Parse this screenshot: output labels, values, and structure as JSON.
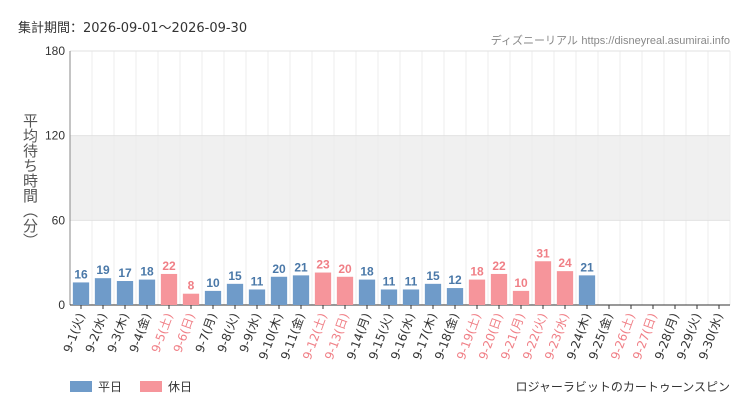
{
  "header": {
    "period": "集計期間：2026-09-01～2026-09-30",
    "source_name": "ディズニーリアル",
    "source_url": "https://disneyreal.asumirai.info"
  },
  "colors": {
    "weekday": "#6f9bc9",
    "holiday": "#f6959b",
    "weekday_label": "#4a78a8",
    "holiday_label": "#f07f86",
    "band": "#f0f0f0",
    "grid": "#e2e2e2"
  },
  "legend": {
    "weekday_label": "平日",
    "holiday_label": "休日"
  },
  "attraction": "ロジャーラビットのカートゥーンスピン",
  "chart_data": {
    "type": "bar",
    "ylabel": "平均待ち時間（分）",
    "ylim": [
      0,
      180
    ],
    "yticks": [
      0,
      60,
      120,
      180
    ],
    "shaded_band": [
      60,
      120
    ],
    "categories": [
      "9-1(火)",
      "9-2(水)",
      "9-3(木)",
      "9-4(金)",
      "9-5(土)",
      "9-6(日)",
      "9-7(月)",
      "9-8(火)",
      "9-9(水)",
      "9-10(木)",
      "9-11(金)",
      "9-12(土)",
      "9-13(日)",
      "9-14(月)",
      "9-15(火)",
      "9-16(水)",
      "9-17(木)",
      "9-18(金)",
      "9-19(土)",
      "9-20(日)",
      "9-21(月)",
      "9-22(火)",
      "9-23(水)",
      "9-24(木)",
      "9-25(金)",
      "9-26(土)",
      "9-27(日)",
      "9-28(月)",
      "9-29(火)",
      "9-30(水)"
    ],
    "values": [
      16,
      19,
      17,
      18,
      22,
      8,
      10,
      15,
      11,
      20,
      21,
      23,
      20,
      18,
      11,
      11,
      15,
      12,
      18,
      22,
      10,
      31,
      24,
      21,
      null,
      null,
      null,
      null,
      null,
      null
    ],
    "day_type": [
      "weekday",
      "weekday",
      "weekday",
      "weekday",
      "holiday",
      "holiday",
      "weekday",
      "weekday",
      "weekday",
      "weekday",
      "weekday",
      "holiday",
      "holiday",
      "weekday",
      "weekday",
      "weekday",
      "weekday",
      "weekday",
      "holiday",
      "holiday",
      "holiday",
      "holiday",
      "holiday",
      "weekday",
      "weekday",
      "holiday",
      "holiday",
      "weekday",
      "weekday",
      "weekday"
    ],
    "legend": [
      "平日",
      "休日"
    ]
  }
}
